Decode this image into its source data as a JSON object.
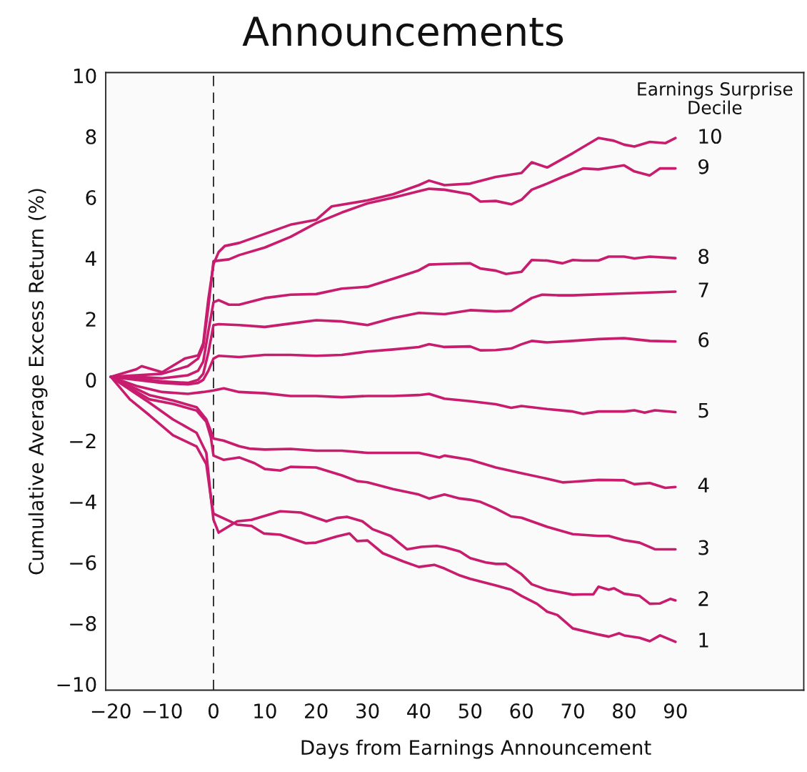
{
  "chart_data": {
    "type": "line",
    "title": "Announcements",
    "xlabel": "Days from Earnings Announcement",
    "ylabel": "Cumulative Average Excess Return (%)",
    "legend_title": "Earnings Surprise\nDecile",
    "marker": "none",
    "line_style": "solid",
    "grid": false,
    "xlim": [
      -21,
      115
    ],
    "ylim": [
      -10.2,
      10.1
    ],
    "xticks": [
      {
        "value": -20,
        "label": "−20"
      },
      {
        "value": -10,
        "label": "−10"
      },
      0,
      10,
      20,
      30,
      40,
      50,
      60,
      70,
      80,
      90
    ],
    "yticks": [
      {
        "value": -10,
        "label": "−10"
      },
      {
        "value": -8,
        "label": "−8"
      },
      {
        "value": -6,
        "label": "−6"
      },
      {
        "value": -4,
        "label": "−4"
      },
      {
        "value": -2,
        "label": "−2"
      },
      0,
      2,
      4,
      6,
      8,
      10
    ],
    "ref_lines": [
      {
        "axis": "x",
        "value": 0,
        "color": "#222222",
        "line_style": "dashed"
      }
    ],
    "series": [
      {
        "name": "10",
        "color": "#c81c6e",
        "x": [
          -20,
          -15,
          -14,
          -10,
          -5.6,
          -3,
          -2,
          -1,
          0,
          1,
          2.2,
          5,
          10,
          15,
          20,
          23,
          30,
          35,
          40,
          42,
          45,
          50,
          55,
          60,
          62,
          65,
          70,
          75,
          78,
          80,
          82,
          85,
          88,
          90
        ],
        "values": [
          0.1,
          0.35,
          0.45,
          0.25,
          0.7,
          0.8,
          1.2,
          2.66,
          3.8,
          4.2,
          4.4,
          4.5,
          4.8,
          5.1,
          5.26,
          5.7,
          5.9,
          6.1,
          6.4,
          6.55,
          6.4,
          6.45,
          6.67,
          6.8,
          7.15,
          6.98,
          7.45,
          7.95,
          7.86,
          7.73,
          7.67,
          7.82,
          7.78,
          7.95
        ]
      },
      {
        "name": "9",
        "color": "#c81c6e",
        "x": [
          -20,
          -15,
          -10,
          -5,
          -3,
          -2,
          -1,
          0,
          3,
          5,
          10,
          15,
          20,
          25,
          30,
          35,
          40,
          42,
          45,
          50,
          52,
          55,
          58,
          60,
          62,
          65,
          68,
          70,
          72,
          75,
          78,
          80,
          82,
          85,
          87,
          90
        ],
        "values": [
          0.1,
          0.15,
          0.2,
          0.45,
          0.7,
          1.1,
          2.4,
          3.9,
          3.96,
          4.1,
          4.35,
          4.7,
          5.15,
          5.5,
          5.8,
          5.99,
          6.2,
          6.28,
          6.25,
          6.1,
          5.86,
          5.88,
          5.77,
          5.92,
          6.25,
          6.45,
          6.67,
          6.8,
          6.95,
          6.92,
          7.0,
          7.05,
          6.85,
          6.72,
          6.95,
          6.95
        ]
      },
      {
        "name": "8",
        "color": "#c81c6e",
        "x": [
          -20,
          -15,
          -10,
          -5,
          -3,
          -2,
          -1,
          0,
          1,
          3,
          5,
          10,
          15,
          20,
          25,
          30,
          35,
          40,
          42,
          45,
          50,
          52,
          55,
          57,
          60,
          62,
          65,
          68,
          70,
          72,
          75,
          77,
          80,
          82,
          85,
          90
        ],
        "values": [
          0.1,
          0.1,
          0.05,
          0.15,
          0.3,
          0.6,
          1.6,
          2.55,
          2.62,
          2.47,
          2.47,
          2.69,
          2.8,
          2.82,
          3.0,
          3.06,
          3.32,
          3.6,
          3.79,
          3.81,
          3.83,
          3.66,
          3.59,
          3.48,
          3.55,
          3.94,
          3.92,
          3.83,
          3.94,
          3.92,
          3.92,
          4.05,
          4.05,
          3.99,
          4.05,
          4.0
        ]
      },
      {
        "name": "7",
        "color": "#c81c6e",
        "x": [
          -20,
          -15,
          -10,
          -5,
          -3,
          -2,
          -1,
          0,
          1,
          5,
          10,
          15,
          20,
          25,
          30,
          35,
          40,
          45,
          50,
          55,
          58,
          62,
          64,
          67,
          70,
          80,
          90
        ],
        "values": [
          0.1,
          0.05,
          -0.05,
          -0.1,
          0.0,
          0.2,
          0.9,
          1.8,
          1.83,
          1.8,
          1.74,
          1.85,
          1.96,
          1.92,
          1.8,
          2.03,
          2.2,
          2.16,
          2.29,
          2.25,
          2.27,
          2.69,
          2.8,
          2.78,
          2.78,
          2.84,
          2.9
        ]
      },
      {
        "name": "6",
        "color": "#c81c6e",
        "x": [
          -20,
          -15,
          -10,
          -5,
          -3,
          -2,
          -1,
          0,
          1,
          5,
          10,
          15,
          20,
          25,
          30,
          35,
          40,
          42,
          45,
          50,
          52,
          55,
          58,
          60,
          62,
          65,
          70,
          75,
          80,
          85,
          90
        ],
        "values": [
          0.1,
          0.0,
          -0.1,
          -0.15,
          -0.1,
          0.0,
          0.3,
          0.7,
          0.79,
          0.75,
          0.82,
          0.82,
          0.79,
          0.82,
          0.93,
          1.0,
          1.08,
          1.17,
          1.08,
          1.1,
          0.97,
          0.98,
          1.03,
          1.17,
          1.28,
          1.23,
          1.28,
          1.34,
          1.37,
          1.28,
          1.26
        ]
      },
      {
        "name": "5",
        "color": "#c81c6e",
        "x": [
          -20,
          -15,
          -10,
          -5,
          -2,
          0,
          2,
          5,
          10,
          15,
          20,
          25,
          30,
          35,
          40,
          42,
          45,
          50,
          55,
          58,
          60,
          65,
          70,
          72,
          75,
          80,
          82,
          84,
          86,
          90
        ],
        "values": [
          0.1,
          -0.2,
          -0.4,
          -0.46,
          -0.4,
          -0.35,
          -0.28,
          -0.4,
          -0.44,
          -0.53,
          -0.53,
          -0.57,
          -0.53,
          -0.53,
          -0.5,
          -0.46,
          -0.62,
          -0.7,
          -0.8,
          -0.92,
          -0.86,
          -0.96,
          -1.04,
          -1.12,
          -1.04,
          -1.04,
          -1.0,
          -1.08,
          -1.0,
          -1.06
        ]
      },
      {
        "name": "4",
        "color": "#c81c6e",
        "x": [
          -20,
          -12.5,
          -7.9,
          -3.3,
          -1.4,
          -0.2,
          0,
          2,
          5,
          7,
          10,
          15,
          20,
          25,
          30,
          35,
          40,
          44,
          45,
          50,
          55,
          60,
          65,
          68,
          70,
          75,
          80,
          82,
          85,
          88,
          90
        ],
        "values": [
          0.1,
          -0.5,
          -0.68,
          -0.9,
          -1.3,
          -1.82,
          -1.93,
          -2.0,
          -2.18,
          -2.26,
          -2.29,
          -2.27,
          -2.33,
          -2.33,
          -2.4,
          -2.4,
          -2.4,
          -2.55,
          -2.49,
          -2.63,
          -2.88,
          -3.07,
          -3.25,
          -3.37,
          -3.35,
          -3.29,
          -3.3,
          -3.43,
          -3.39,
          -3.55,
          -3.52
        ]
      },
      {
        "name": "3",
        "color": "#c81c6e",
        "x": [
          -20,
          -12.5,
          -7.9,
          -3.3,
          -1.4,
          -0.5,
          0,
          2,
          5,
          8,
          10,
          13,
          15,
          20,
          25,
          28,
          30,
          35,
          40,
          42,
          45,
          48,
          50,
          52,
          55,
          58,
          60,
          65,
          70,
          75,
          77,
          80,
          83,
          86,
          90
        ],
        "values": [
          0.1,
          -0.64,
          -0.79,
          -1.01,
          -1.38,
          -1.9,
          -2.49,
          -2.63,
          -2.55,
          -2.74,
          -2.93,
          -2.98,
          -2.86,
          -2.88,
          -3.14,
          -3.33,
          -3.37,
          -3.59,
          -3.77,
          -3.9,
          -3.77,
          -3.9,
          -3.94,
          -4.01,
          -4.23,
          -4.49,
          -4.53,
          -4.83,
          -5.07,
          -5.13,
          -5.13,
          -5.27,
          -5.35,
          -5.57,
          -5.57
        ]
      },
      {
        "name": "2",
        "color": "#c81c6e",
        "x": [
          -20,
          -16.3,
          -12.5,
          -7.9,
          -3.3,
          -1.4,
          -0.5,
          0,
          1,
          4.6,
          7.4,
          13,
          17,
          22,
          24,
          26,
          29,
          31,
          34.5,
          37.7,
          40.5,
          43.5,
          45,
          48,
          50,
          53,
          55,
          57,
          60,
          62,
          65,
          70,
          72,
          74,
          75,
          77,
          78,
          80,
          83,
          85,
          87,
          89,
          90
        ],
        "values": [
          0.1,
          -0.64,
          -1.16,
          -1.82,
          -2.19,
          -2.77,
          -3.88,
          -4.6,
          -5.02,
          -4.65,
          -4.6,
          -4.32,
          -4.36,
          -4.65,
          -4.54,
          -4.5,
          -4.65,
          -4.91,
          -5.13,
          -5.57,
          -5.49,
          -5.46,
          -5.5,
          -5.64,
          -5.86,
          -6.0,
          -6.05,
          -6.05,
          -6.39,
          -6.72,
          -6.9,
          -7.06,
          -7.05,
          -7.05,
          -6.8,
          -6.9,
          -6.85,
          -7.03,
          -7.1,
          -7.36,
          -7.35,
          -7.2,
          -7.25
        ]
      },
      {
        "name": "1",
        "color": "#c81c6e",
        "x": [
          -20,
          -12.5,
          -7.9,
          -3.3,
          -1.4,
          -0.5,
          0,
          4.6,
          7.4,
          9.8,
          13,
          18,
          20,
          24,
          26.5,
          28,
          30,
          33,
          37,
          40,
          43,
          45,
          48,
          50,
          55,
          58,
          60,
          63,
          65,
          67,
          70,
          75,
          77,
          79,
          80,
          83,
          85,
          87,
          90
        ],
        "values": [
          0.1,
          -0.75,
          -1.3,
          -1.74,
          -2.4,
          -3.88,
          -4.4,
          -4.76,
          -4.8,
          -5.05,
          -5.09,
          -5.37,
          -5.35,
          -5.15,
          -5.05,
          -5.3,
          -5.28,
          -5.7,
          -5.97,
          -6.15,
          -6.08,
          -6.2,
          -6.43,
          -6.54,
          -6.76,
          -6.9,
          -7.1,
          -7.36,
          -7.62,
          -7.73,
          -8.17,
          -8.37,
          -8.44,
          -8.33,
          -8.4,
          -8.48,
          -8.59,
          -8.4,
          -8.61
        ]
      }
    ]
  }
}
